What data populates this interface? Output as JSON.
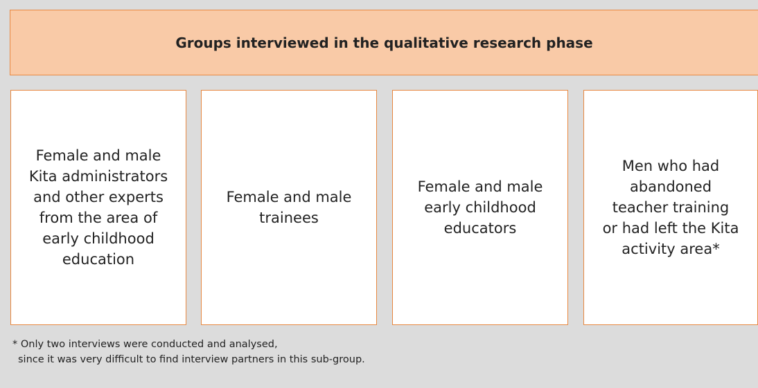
{
  "header": {
    "title": "Groups interviewed in the qualitative research phase"
  },
  "boxes": [
    {
      "lines": [
        "Female and male",
        "Kita administrators",
        "and other experts",
        "from the area of",
        "early childhood",
        "education"
      ]
    },
    {
      "lines": [
        "Female and male",
        "trainees"
      ]
    },
    {
      "lines": [
        "Female and male",
        "early childhood",
        "educators"
      ]
    },
    {
      "lines": [
        "Men who had",
        "abandoned",
        "teacher training",
        "or had left the Kita",
        "activity area*"
      ]
    }
  ],
  "footnote": {
    "lines": [
      "* Only two interviews were conducted and analysed,",
      "since it was very difficult to find interview partners in this sub-group."
    ]
  }
}
